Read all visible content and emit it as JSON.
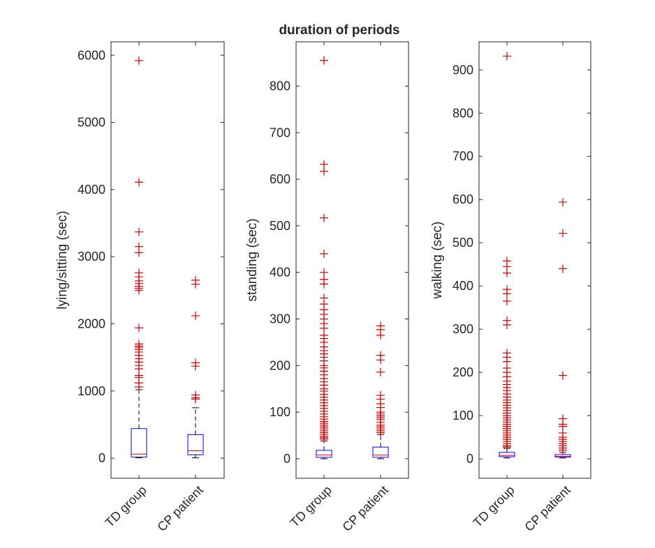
{
  "figure": {
    "title": "duration of periods"
  },
  "colors": {
    "box": "#0000ff",
    "median": "#ff0000",
    "outlier": "#d40000",
    "whisker": "#000000",
    "axis": "#262626"
  },
  "chart_data": [
    {
      "type": "box",
      "ylabel": "lying/sitting (sec)",
      "ylim": [
        -300,
        6200
      ],
      "yticks": [
        0,
        1000,
        2000,
        3000,
        4000,
        5000,
        6000
      ],
      "categories": [
        "TD group",
        "CP patient"
      ],
      "boxes": [
        {
          "name": "TD group",
          "whisker_low": 5,
          "q1": 15,
          "median": 60,
          "q3": 440,
          "whisker_high": 1020,
          "outliers": [
            5920,
            4110,
            3370,
            3150,
            3060,
            2760,
            2700,
            2640,
            2600,
            2560,
            2530,
            2500,
            1940,
            1700,
            1670,
            1650,
            1620,
            1580,
            1530,
            1480,
            1430,
            1380,
            1330,
            1230,
            1200,
            1120,
            1060
          ]
        },
        {
          "name": "CP patient",
          "whisker_low": 5,
          "q1": 50,
          "median": 110,
          "q3": 350,
          "whisker_high": 750,
          "outliers": [
            2650,
            2590,
            2120,
            1420,
            1370,
            940,
            900,
            880
          ]
        }
      ]
    },
    {
      "type": "box",
      "ylabel": "standing (sec)",
      "ylim": [
        -42,
        895
      ],
      "yticks": [
        0,
        100,
        200,
        300,
        400,
        500,
        600,
        700,
        800
      ],
      "categories": [
        "TD group",
        "CP patient"
      ],
      "boxes": [
        {
          "name": "TD group",
          "whisker_low": 0,
          "q1": 3,
          "median": 8,
          "q3": 18,
          "whisker_high": 38,
          "outliers": [
            855,
            632,
            617,
            517,
            440,
            400,
            385,
            375,
            345,
            332,
            320,
            310,
            300,
            290,
            280,
            265,
            258,
            250,
            240,
            232,
            225,
            218,
            210,
            200,
            195,
            188,
            180,
            172,
            165,
            158,
            150,
            145,
            138,
            132,
            126,
            120,
            114,
            108,
            102,
            96,
            90,
            85,
            80,
            76,
            72,
            68,
            64,
            60,
            56,
            52,
            48,
            45,
            42
          ]
        },
        {
          "name": "CP patient",
          "whisker_low": 0,
          "q1": 3,
          "median": 8,
          "q3": 25,
          "whisker_high": 52,
          "outliers": [
            285,
            277,
            265,
            222,
            212,
            186,
            136,
            128,
            118,
            110,
            100,
            96,
            92,
            88,
            84,
            78,
            72,
            68,
            64,
            60,
            56
          ]
        }
      ]
    },
    {
      "type": "box",
      "ylabel": "walking (sec)",
      "ylim": [
        -45,
        965
      ],
      "yticks": [
        0,
        100,
        200,
        300,
        400,
        500,
        600,
        700,
        800,
        900
      ],
      "categories": [
        "TD group",
        "CP patient"
      ],
      "boxes": [
        {
          "name": "TD group",
          "whisker_low": 2,
          "q1": 5,
          "median": 8,
          "q3": 15,
          "whisker_high": 24,
          "outliers": [
            932,
            458,
            445,
            430,
            392,
            382,
            365,
            320,
            310,
            245,
            235,
            225,
            210,
            200,
            190,
            180,
            172,
            165,
            158,
            150,
            143,
            136,
            130,
            124,
            118,
            112,
            106,
            100,
            95,
            90,
            85,
            80,
            75,
            70,
            65,
            60,
            55,
            50,
            45,
            40,
            35,
            30,
            27
          ]
        },
        {
          "name": "CP patient",
          "whisker_low": 2,
          "q1": 4,
          "median": 6,
          "q3": 10,
          "whisker_high": 15,
          "outliers": [
            594,
            522,
            440,
            193,
            93,
            80,
            75,
            60,
            50,
            45,
            40,
            35,
            30,
            25,
            20
          ]
        }
      ]
    }
  ]
}
